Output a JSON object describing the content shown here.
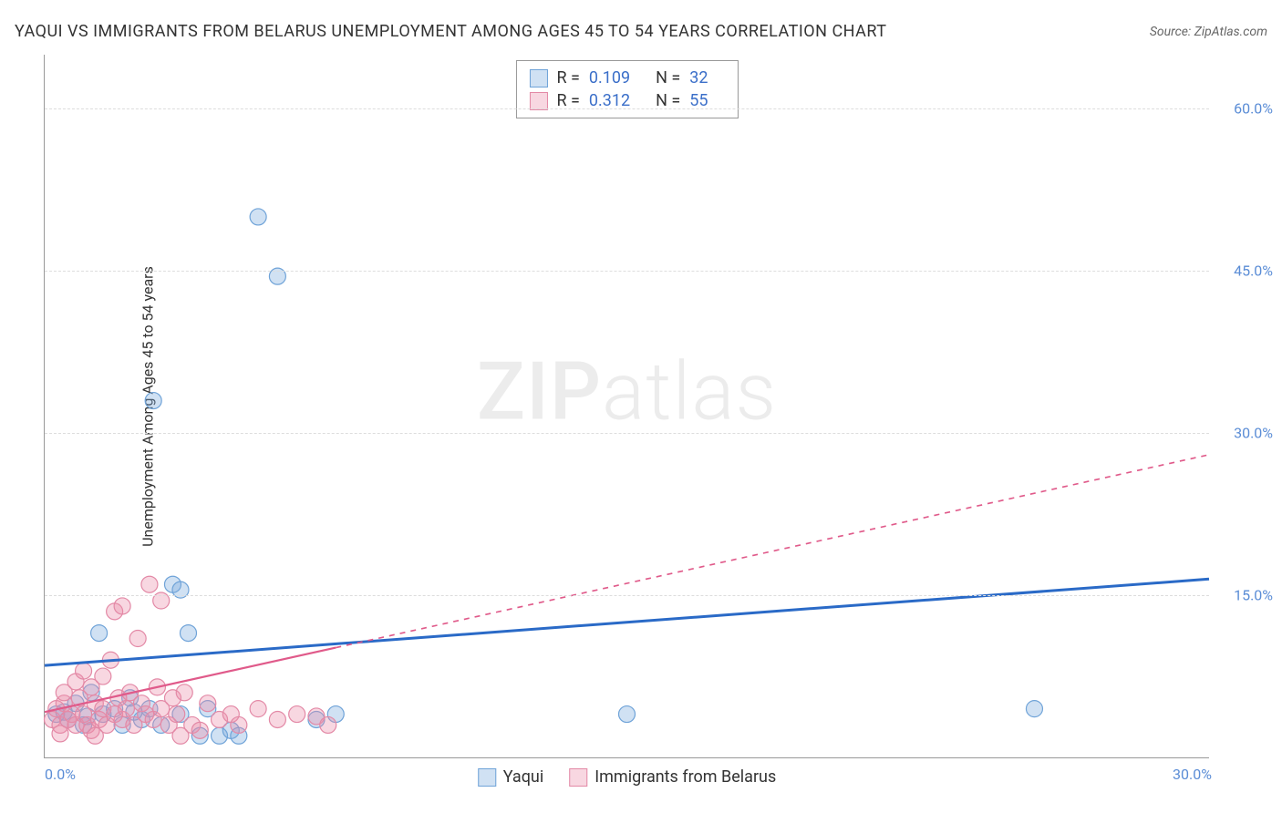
{
  "header": {
    "title": "YAQUI VS IMMIGRANTS FROM BELARUS UNEMPLOYMENT AMONG AGES 45 TO 54 YEARS CORRELATION CHART",
    "source": "Source: ZipAtlas.com"
  },
  "ylabel": "Unemployment Among Ages 45 to 54 years",
  "watermark": {
    "zip": "ZIP",
    "atlas": "atlas"
  },
  "chart": {
    "type": "scatter",
    "xlim": [
      0,
      30
    ],
    "ylim": [
      0,
      65
    ],
    "x_ticks": [
      {
        "v": 0,
        "label": "0.0%"
      },
      {
        "v": 30,
        "label": "30.0%"
      }
    ],
    "y_ticks": [
      {
        "v": 15,
        "label": "15.0%"
      },
      {
        "v": 30,
        "label": "30.0%"
      },
      {
        "v": 45,
        "label": "45.0%"
      },
      {
        "v": 60,
        "label": "60.0%"
      }
    ],
    "grid_color": "#dddddd",
    "axis_color": "#999999",
    "background_color": "#ffffff",
    "marker_radius": 9,
    "marker_stroke_width": 1.2,
    "series": [
      {
        "name": "Yaqui",
        "fill": "rgba(120,170,220,0.35)",
        "stroke": "#6fa3d8",
        "trend_color": "#2a6ac7",
        "trend_width": 3,
        "trend_dash_after_x": 30,
        "trend": {
          "x1": 0,
          "y1": 8.5,
          "x2": 30,
          "y2": 16.5
        },
        "points": [
          [
            0.3,
            4.0
          ],
          [
            0.6,
            3.5
          ],
          [
            0.8,
            5.0
          ],
          [
            1.0,
            3.0
          ],
          [
            1.2,
            6.0
          ],
          [
            1.4,
            11.5
          ],
          [
            1.5,
            4.0
          ],
          [
            1.8,
            4.5
          ],
          [
            2.0,
            3.0
          ],
          [
            2.2,
            5.5
          ],
          [
            2.5,
            3.5
          ],
          [
            2.7,
            4.5
          ],
          [
            2.8,
            33.0
          ],
          [
            3.0,
            3.0
          ],
          [
            3.3,
            16.0
          ],
          [
            3.5,
            4.0
          ],
          [
            3.5,
            15.5
          ],
          [
            3.7,
            11.5
          ],
          [
            4.0,
            2.0
          ],
          [
            4.2,
            4.5
          ],
          [
            4.5,
            2.0
          ],
          [
            4.8,
            2.5
          ],
          [
            5.0,
            2.0
          ],
          [
            5.5,
            50.0
          ],
          [
            6.0,
            44.5
          ],
          [
            7.0,
            3.5
          ],
          [
            7.5,
            4.0
          ],
          [
            15.0,
            4.0
          ],
          [
            25.5,
            4.5
          ],
          [
            0.5,
            4.2
          ],
          [
            1.1,
            3.8
          ],
          [
            2.3,
            4.2
          ]
        ]
      },
      {
        "name": "Immigrants from Belarus",
        "fill": "rgba(235,140,170,0.35)",
        "stroke": "#e389a6",
        "trend_color": "#e05a8a",
        "trend_width": 2.2,
        "trend_dash_after_x": 7.5,
        "trend_dash": "6,6",
        "trend": {
          "x1": 0,
          "y1": 4.2,
          "x2": 30,
          "y2": 28.0
        },
        "points": [
          [
            0.2,
            3.5
          ],
          [
            0.3,
            4.5
          ],
          [
            0.4,
            3.0
          ],
          [
            0.5,
            5.0
          ],
          [
            0.5,
            6.0
          ],
          [
            0.6,
            3.5
          ],
          [
            0.7,
            4.0
          ],
          [
            0.8,
            7.0
          ],
          [
            0.8,
            3.0
          ],
          [
            0.9,
            5.5
          ],
          [
            1.0,
            4.0
          ],
          [
            1.0,
            8.0
          ],
          [
            1.1,
            3.0
          ],
          [
            1.2,
            6.5
          ],
          [
            1.2,
            2.5
          ],
          [
            1.3,
            5.0
          ],
          [
            1.4,
            3.5
          ],
          [
            1.5,
            7.5
          ],
          [
            1.5,
            4.5
          ],
          [
            1.6,
            3.0
          ],
          [
            1.7,
            9.0
          ],
          [
            1.8,
            4.0
          ],
          [
            1.8,
            13.5
          ],
          [
            1.9,
            5.5
          ],
          [
            2.0,
            3.5
          ],
          [
            2.0,
            14.0
          ],
          [
            2.1,
            4.5
          ],
          [
            2.2,
            6.0
          ],
          [
            2.3,
            3.0
          ],
          [
            2.4,
            11.0
          ],
          [
            2.5,
            5.0
          ],
          [
            2.6,
            4.0
          ],
          [
            2.7,
            16.0
          ],
          [
            2.8,
            3.5
          ],
          [
            2.9,
            6.5
          ],
          [
            3.0,
            4.5
          ],
          [
            3.0,
            14.5
          ],
          [
            3.2,
            3.0
          ],
          [
            3.3,
            5.5
          ],
          [
            3.4,
            4.0
          ],
          [
            3.5,
            2.0
          ],
          [
            3.6,
            6.0
          ],
          [
            3.8,
            3.0
          ],
          [
            4.0,
            2.5
          ],
          [
            4.2,
            5.0
          ],
          [
            4.5,
            3.5
          ],
          [
            4.8,
            4.0
          ],
          [
            5.0,
            3.0
          ],
          [
            5.5,
            4.5
          ],
          [
            6.0,
            3.5
          ],
          [
            6.5,
            4.0
          ],
          [
            7.0,
            3.8
          ],
          [
            7.3,
            3.0
          ],
          [
            0.4,
            2.2
          ],
          [
            1.3,
            2.0
          ]
        ]
      }
    ],
    "legend_stats": [
      {
        "swatch_fill": "rgba(120,170,220,0.35)",
        "swatch_stroke": "#6fa3d8",
        "r_label": "R =",
        "r": "0.109",
        "n_label": "N =",
        "n": "32"
      },
      {
        "swatch_fill": "rgba(235,140,170,0.35)",
        "swatch_stroke": "#e389a6",
        "r_label": "R =",
        "r": "0.312",
        "n_label": "N =",
        "n": "55"
      }
    ],
    "legend_bottom": [
      {
        "swatch_fill": "rgba(120,170,220,0.35)",
        "swatch_stroke": "#6fa3d8",
        "label": "Yaqui"
      },
      {
        "swatch_fill": "rgba(235,140,170,0.35)",
        "swatch_stroke": "#e389a6",
        "label": "Immigrants from Belarus"
      }
    ]
  },
  "colors": {
    "tick_label": "#5b8dd6"
  }
}
